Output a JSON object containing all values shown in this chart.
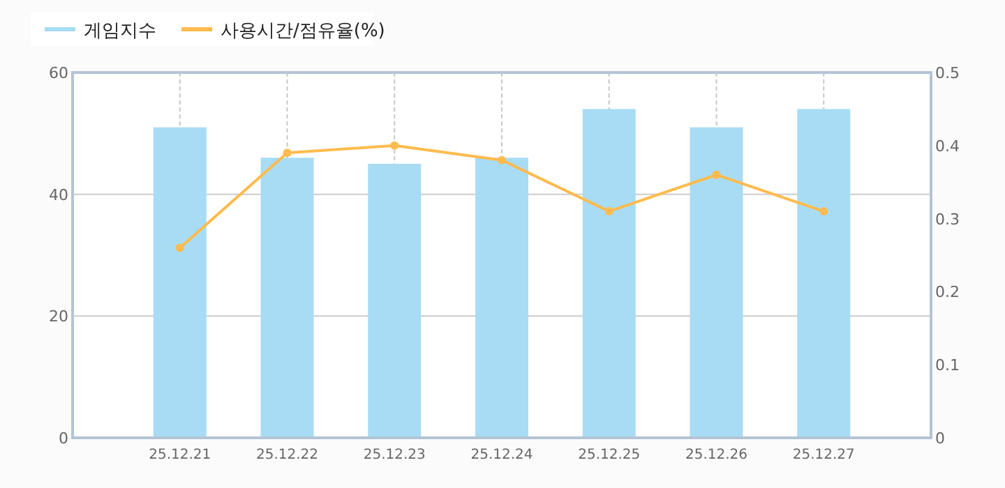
{
  "chart_data": {
    "type": "bar",
    "categories": [
      "25.12.21",
      "25.12.22",
      "25.12.23",
      "25.12.24",
      "25.12.25",
      "25.12.26",
      "25.12.27"
    ],
    "series": [
      {
        "name": "게임지수",
        "color": "#a8dcf5",
        "values": [
          51,
          46,
          45,
          46,
          54,
          51,
          54
        ]
      },
      {
        "name": "사용시간/점유율(%)",
        "type": "line",
        "axis": "y2",
        "color": "#ffbb4d",
        "marker": "circle",
        "values": [
          0.26,
          0.39,
          0.4,
          0.38,
          0.31,
          0.36,
          0.31
        ]
      }
    ],
    "ylim": [
      0,
      60
    ],
    "yticks": [
      0,
      20,
      40,
      60
    ],
    "y2lim": [
      0,
      0.5
    ],
    "y2ticks": [
      0,
      0.1,
      0.2,
      0.3,
      0.4,
      0.5
    ],
    "grid": true,
    "legend": "top left"
  }
}
